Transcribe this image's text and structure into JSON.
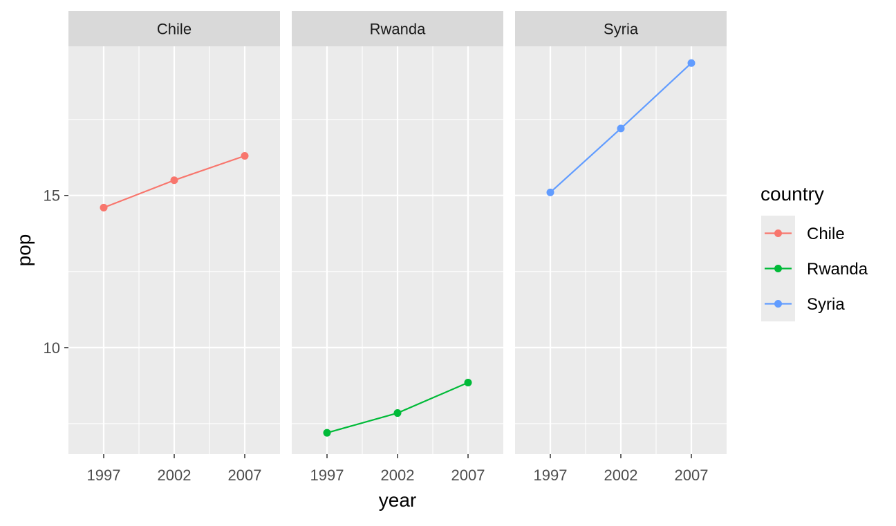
{
  "chart_data": {
    "type": "line",
    "facet_by": "country",
    "x": [
      1997,
      2002,
      2007
    ],
    "x_tick_labels": [
      "1997",
      "2002",
      "2007"
    ],
    "xlim": [
      1994.5,
      2009.5
    ],
    "ylim": [
      6.5,
      19.9
    ],
    "y_ticks": [
      10,
      15
    ],
    "y_tick_labels": [
      "10",
      "15"
    ],
    "xlabel": "year",
    "ylabel": "pop",
    "grid": true,
    "legend_title": "country",
    "legend_position": "right",
    "series": [
      {
        "name": "Chile",
        "color": "#F8766D",
        "values": [
          14.6,
          15.5,
          16.3
        ]
      },
      {
        "name": "Rwanda",
        "color": "#00BA38",
        "values": [
          7.2,
          7.85,
          8.85
        ]
      },
      {
        "name": "Syria",
        "color": "#619CFF",
        "values": [
          15.1,
          17.2,
          19.35
        ]
      }
    ]
  }
}
